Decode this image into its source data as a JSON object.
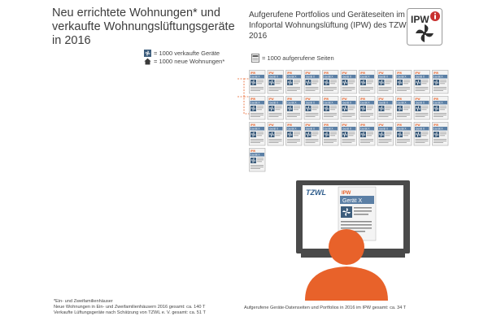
{
  "title": "Neu errichtete Wohnungen* und verkaufte Wohnungslüftungsgeräte in 2016",
  "legend": {
    "device": "= 1000 verkaufte Geräte",
    "dwelling": "= 1000 neue Wohnungen*"
  },
  "right_title": "Aufgerufene Portfolios und Geräteseiten im Infoportal Wohnungslüftung (IPW) des TZWL in 2016",
  "page_legend": "= 1000 aufgerufene Seiten",
  "logo_text": "IPW",
  "doc_card": {
    "brand": "IPW",
    "label": "Gerät X"
  },
  "screen": {
    "brand": "TZWL",
    "brand_sub": "IPW",
    "label": "Gerät X"
  },
  "footnote": {
    "line1": "*Ein- und Zweifamilienhäuser",
    "line2": "Neue Wohnungen in Ein- und Zweifamilienhäusern 2016 gesamt: ca. 140 T",
    "line3": "Verkaufte Lüftungsgeräte nach Schätzung von TZWL e. V. gesamt: ca. 51 T"
  },
  "caption_right": "Aufgerufene Geräte-Datenseiten und Portfolios in 2016 im IPW gesamt: ca. 34 T",
  "colors": {
    "house": "#3a3a3a",
    "device_house": "#3d5d7c",
    "accent": "#e8622a",
    "doc_header": "#5b7fa5",
    "monitor": "#4a4a4a"
  },
  "chart_data": {
    "type": "pictogram",
    "unit": 1000,
    "series": [
      {
        "name": "neue Wohnungen*",
        "values": [
          140
        ]
      },
      {
        "name": "verkaufte Geräte",
        "values": [
          51
        ]
      },
      {
        "name": "aufgerufene Seiten",
        "values": [
          34
        ]
      }
    ]
  }
}
